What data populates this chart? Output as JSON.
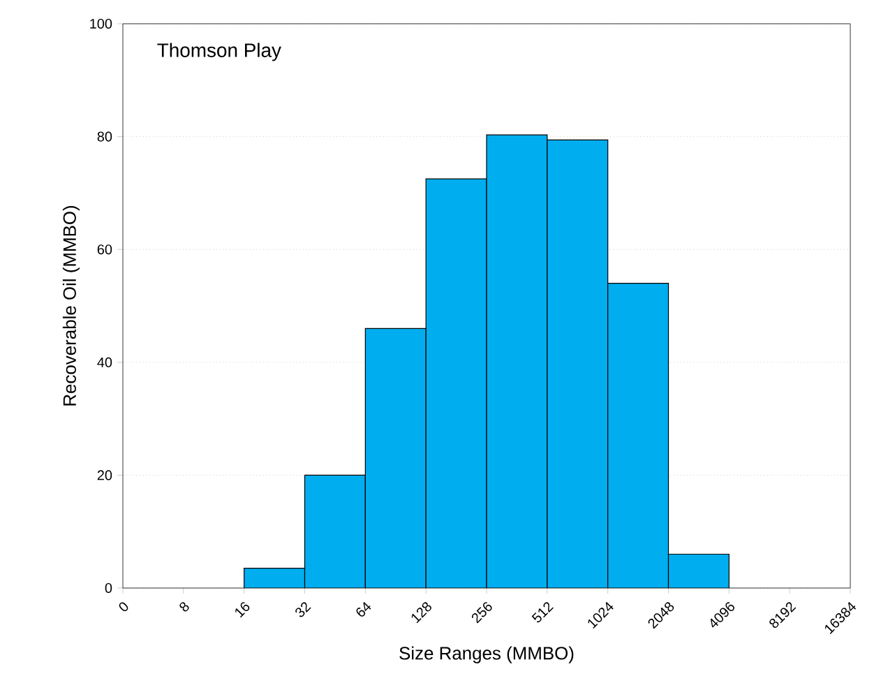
{
  "chart_data": {
    "type": "histogram",
    "title": "Thomson Play",
    "xlabel": "Size Ranges (MMBO)",
    "ylabel": "Recoverable Oil (MMBO)",
    "bins": [
      16,
      32,
      64,
      128,
      256,
      512,
      1024,
      2048,
      4096
    ],
    "values": [
      3.5,
      20,
      46,
      72.5,
      80.3,
      79.4,
      54,
      6
    ],
    "xlim": [
      0,
      16384
    ],
    "xticks": [
      0,
      8,
      16,
      32,
      64,
      128,
      256,
      512,
      1024,
      2048,
      4096,
      8192,
      16384
    ],
    "log": "x",
    "color": "#00aeef",
    "ylim": [
      0,
      100
    ],
    "yticks": [
      0,
      20,
      40,
      60,
      80,
      100
    ],
    "grid": "y"
  }
}
